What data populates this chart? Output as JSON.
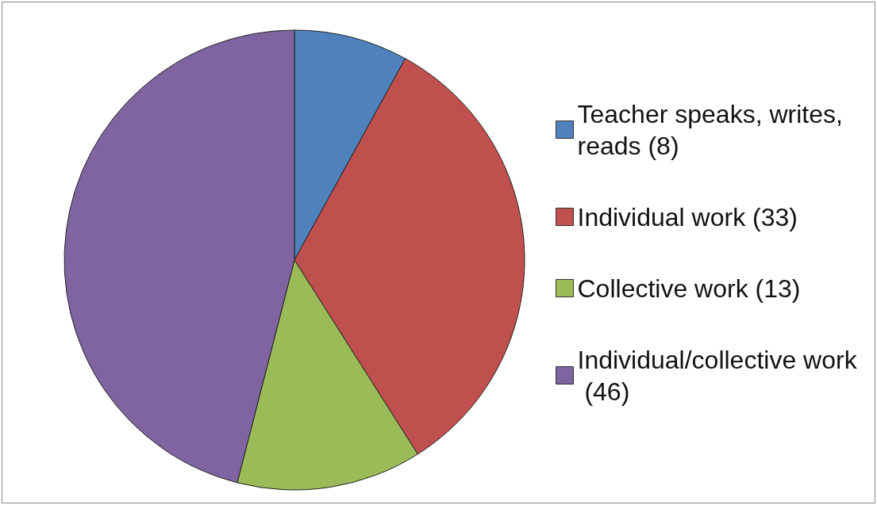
{
  "chart_data": {
    "type": "pie",
    "categories": [
      "Teacher speaks, writes, reads (8)",
      "Individual work (33)",
      "Collective work (13)",
      "Individual/collective work (46)"
    ],
    "values": [
      8,
      33,
      13,
      46
    ],
    "colors": [
      "#4f81bd",
      "#c0504d",
      "#9bbb59",
      "#8064a2"
    ],
    "legend": "right"
  }
}
